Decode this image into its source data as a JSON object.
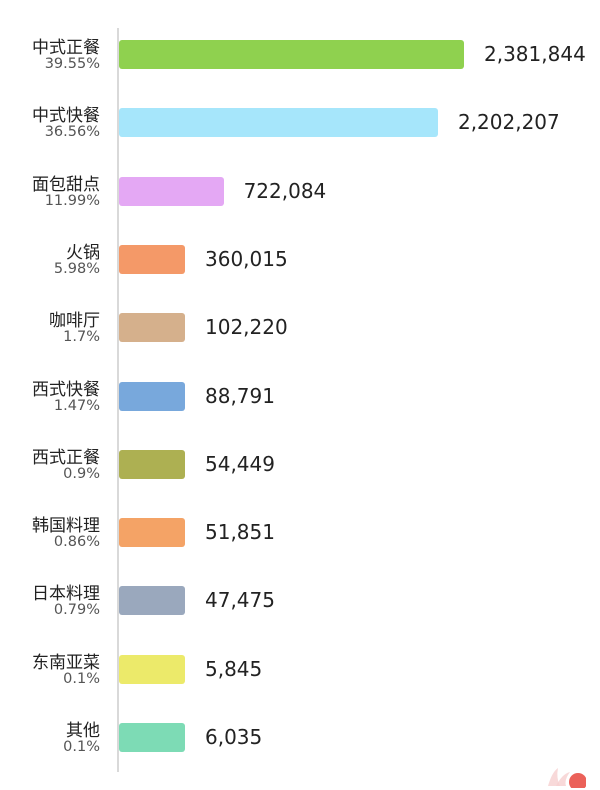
{
  "chart_data": {
    "type": "bar",
    "orientation": "horizontal",
    "categories": [
      "中式正餐",
      "中式快餐",
      "面包甜点",
      "火锅",
      "咖啡厅",
      "西式快餐",
      "西式正餐",
      "韩国料理",
      "日本料理",
      "东南亚菜",
      "其他"
    ],
    "percent_labels": [
      "39.55%",
      "36.56%",
      "11.99%",
      "5.98%",
      "1.7%",
      "1.47%",
      "0.9%",
      "0.86%",
      "0.79%",
      "0.1%",
      "0.1%"
    ],
    "values": [
      2381844,
      2202207,
      722084,
      360015,
      102220,
      88791,
      54449,
      51851,
      47475,
      5845,
      6035
    ],
    "value_labels": [
      "2,381,844",
      "2,202,207",
      "722,084",
      "360,015",
      "102,220",
      "88,791",
      "54,449",
      "51,851",
      "47,475",
      "5,845",
      "6,035"
    ],
    "colors": [
      "#8fd14f",
      "#a6e6fb",
      "#e4a8f4",
      "#f49968",
      "#d5b08c",
      "#78a8dc",
      "#adb052",
      "#f4a366",
      "#9aa8bd",
      "#ecea6a",
      "#7ddbb5"
    ],
    "title": "",
    "xlabel": "",
    "ylabel": "",
    "grid": false,
    "legend": "none"
  }
}
